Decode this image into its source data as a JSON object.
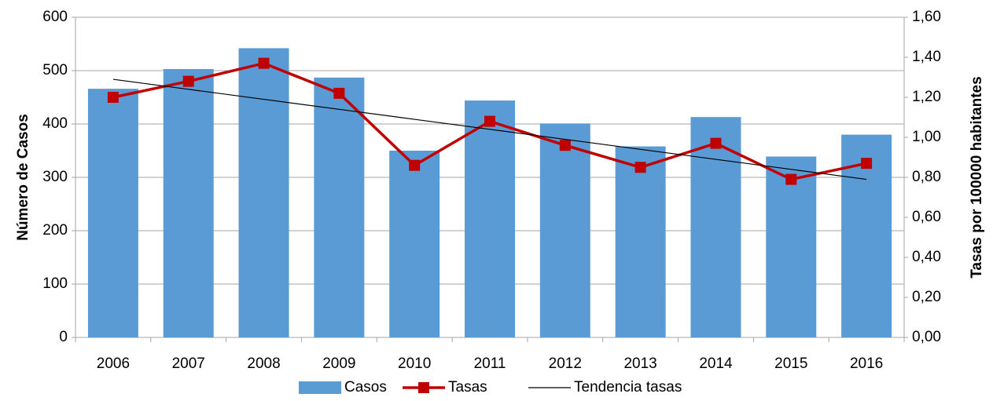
{
  "chart_data": {
    "type": "bar-line",
    "categories": [
      "2006",
      "2007",
      "2008",
      "2009",
      "2010",
      "2011",
      "2012",
      "2013",
      "2014",
      "2015",
      "2016"
    ],
    "y_label": "Número de Casos",
    "y2_label": "Tasas  por 100000 habitantes",
    "ylim": [
      0,
      600
    ],
    "yticks": [
      0,
      100,
      200,
      300,
      400,
      500,
      600
    ],
    "y2lim": [
      0,
      1.6
    ],
    "y2ticks": [
      {
        "value": 0,
        "label": "0,00"
      },
      {
        "value": 0.2,
        "label": "0,20"
      },
      {
        "value": 0.4,
        "label": "0,40"
      },
      {
        "value": 0.6,
        "label": "0,60"
      },
      {
        "value": 0.8,
        "label": "0,80"
      },
      {
        "value": 1.0,
        "label": "1,00"
      },
      {
        "value": 1.2,
        "label": "1,20"
      },
      {
        "value": 1.4,
        "label": "1,40"
      },
      {
        "value": 1.6,
        "label": "1,60"
      }
    ],
    "grid": true,
    "legend": "bottom",
    "series": [
      {
        "name": "Casos",
        "type": "bar",
        "color": "#5b9bd5",
        "values": [
          466,
          503,
          542,
          487,
          350,
          444,
          401,
          358,
          413,
          339,
          380
        ]
      },
      {
        "name": "Tasas",
        "type": "line",
        "axis": "y2",
        "color": "#c00000",
        "values": [
          1.2,
          1.28,
          1.37,
          1.22,
          0.86,
          1.08,
          0.96,
          0.85,
          0.97,
          0.79,
          0.87
        ]
      },
      {
        "name": "Tendencia tasas",
        "type": "trend",
        "axis": "y2",
        "color": "#000000",
        "values": [
          1.29,
          1.24,
          1.19,
          1.14,
          1.09,
          1.04,
          0.99,
          0.94,
          0.89,
          0.84,
          0.79
        ]
      }
    ]
  }
}
